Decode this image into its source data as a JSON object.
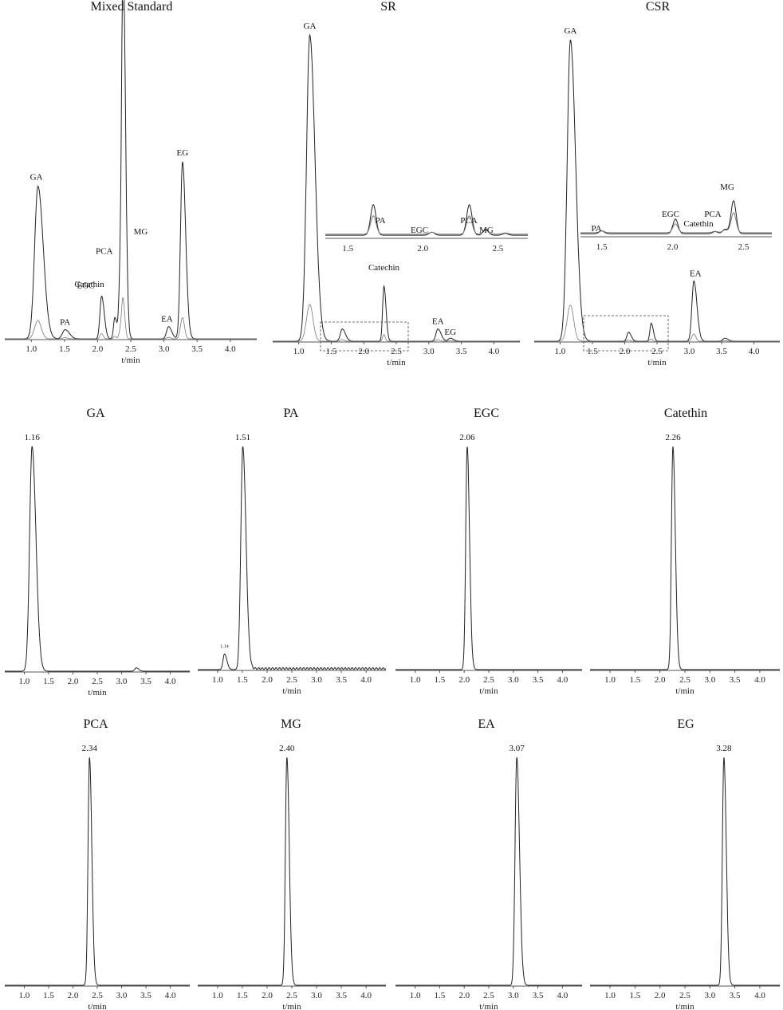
{
  "colors": {
    "trace": "#222222",
    "trace_light": "#7a7a7a",
    "axis": "#555555"
  },
  "chart_data": [
    {
      "type": "line",
      "title": "Mixed Standard",
      "xlabel": "t/min",
      "xticks": [
        "1.0",
        "1.5",
        "2.0",
        "2.5",
        "3.0",
        "3.5",
        "4.0"
      ],
      "xlim": [
        0.6,
        4.4
      ],
      "ylim": [
        0,
        100
      ],
      "peaks": [
        {
          "t": 1.1,
          "h": 50,
          "w": 0.05,
          "label": "GA"
        },
        {
          "t": 1.51,
          "h": 3,
          "w": 0.04,
          "label": "PA"
        },
        {
          "t": 2.06,
          "h": 14,
          "w": 0.025,
          "label": "EGC"
        },
        {
          "t": 2.26,
          "h": 7,
          "w": 0.02,
          "label": "Catethin"
        },
        {
          "t": 2.34,
          "h": 20,
          "w": 0.02,
          "label": "PCA"
        },
        {
          "t": 2.38,
          "h": 100,
          "w": 0.02,
          "label": ""
        },
        {
          "t": 2.41,
          "h": 30,
          "w": 0.02,
          "label": "MG"
        },
        {
          "t": 3.07,
          "h": 4,
          "w": 0.03,
          "label": "EA"
        },
        {
          "t": 3.28,
          "h": 58,
          "w": 0.03,
          "label": "EG"
        }
      ]
    },
    {
      "type": "line",
      "title": "SR",
      "xlabel": "t/min",
      "xticks": [
        "1.0",
        "1.5",
        "2.0",
        "2.5",
        "3.0",
        "3.5",
        "4.0"
      ],
      "xlim": [
        0.6,
        4.4
      ],
      "ylim": [
        0,
        100
      ],
      "peaks": [
        {
          "t": 1.17,
          "h": 100,
          "w": 0.05,
          "label": "GA"
        },
        {
          "t": 1.67,
          "h": 4,
          "w": 0.03,
          "label": ""
        },
        {
          "t": 2.31,
          "h": 18,
          "w": 0.02,
          "label": "Catechin"
        },
        {
          "t": 3.14,
          "h": 4,
          "w": 0.03,
          "label": "EA"
        },
        {
          "t": 3.33,
          "h": 1,
          "w": 0.03,
          "label": "EG"
        }
      ],
      "inset": {
        "xticks": [
          "1.5",
          "2.0",
          "2.5"
        ],
        "labels": [
          "PA",
          "EGC",
          "PCA",
          "MG"
        ]
      }
    },
    {
      "type": "line",
      "title": "CSR",
      "xlabel": "t/min",
      "xticks": [
        "1.0",
        "1.5",
        "2.0",
        "2.5",
        "3.0",
        "3.5",
        "4.0"
      ],
      "xlim": [
        0.6,
        4.4
      ],
      "ylim": [
        0,
        100
      ],
      "peaks": [
        {
          "t": 1.16,
          "h": 100,
          "w": 0.05,
          "label": "GA"
        },
        {
          "t": 2.06,
          "h": 3,
          "w": 0.025,
          "label": ""
        },
        {
          "t": 2.41,
          "h": 6,
          "w": 0.02,
          "label": ""
        },
        {
          "t": 3.07,
          "h": 20,
          "w": 0.03,
          "label": "EA"
        },
        {
          "t": 3.55,
          "h": 1,
          "w": 0.03,
          "label": ""
        }
      ],
      "inset": {
        "xticks": [
          "1.5",
          "2.0",
          "2.5"
        ],
        "labels": [
          "PA",
          "EGC",
          "PCA",
          "Catethin",
          "MG"
        ]
      }
    },
    {
      "type": "line",
      "title": "GA",
      "xlabel": "t/min",
      "xticks": [
        "1.0",
        "1.5",
        "2.0",
        "2.5",
        "3.0",
        "3.5",
        "4.0"
      ],
      "xlim": [
        0.6,
        4.4
      ],
      "ylim": [
        0,
        100
      ],
      "peaks": [
        {
          "t": 1.16,
          "h": 100,
          "w": 0.05,
          "label": "1.16"
        },
        {
          "t": 3.3,
          "h": 1.5,
          "w": 0.03,
          "label": ""
        }
      ]
    },
    {
      "type": "line",
      "title": "PA",
      "xlabel": "t/min",
      "xticks": [
        "1.0",
        "1.5",
        "2.0",
        "2.5",
        "3.0",
        "3.5",
        "4.0"
      ],
      "xlim": [
        0.6,
        4.4
      ],
      "ylim": [
        0,
        100
      ],
      "peaks": [
        {
          "t": 1.14,
          "h": 7,
          "w": 0.03,
          "label": "1.14"
        },
        {
          "t": 1.51,
          "h": 100,
          "w": 0.04,
          "label": "1.51"
        }
      ]
    },
    {
      "type": "line",
      "title": "EGC",
      "xlabel": "t/min",
      "xticks": [
        "1.0",
        "1.5",
        "2.0",
        "2.5",
        "3.0",
        "3.5",
        "4.0"
      ],
      "xlim": [
        0.6,
        4.4
      ],
      "ylim": [
        0,
        100
      ],
      "peaks": [
        {
          "t": 2.06,
          "h": 100,
          "w": 0.03,
          "label": "2.06"
        }
      ]
    },
    {
      "type": "line",
      "title": "Catethin",
      "xlabel": "t/min",
      "xticks": [
        "1.0",
        "1.5",
        "2.0",
        "2.5",
        "3.0",
        "3.5",
        "4.0"
      ],
      "xlim": [
        0.6,
        4.4
      ],
      "ylim": [
        0,
        100
      ],
      "peaks": [
        {
          "t": 2.26,
          "h": 100,
          "w": 0.03,
          "label": "2.26"
        }
      ]
    },
    {
      "type": "line",
      "title": "PCA",
      "xlabel": "t/min",
      "xticks": [
        "1.0",
        "1.5",
        "2.0",
        "2.5",
        "3.0",
        "3.5",
        "4.0"
      ],
      "xlim": [
        0.6,
        4.4
      ],
      "ylim": [
        0,
        100
      ],
      "peaks": [
        {
          "t": 2.34,
          "h": 100,
          "w": 0.03,
          "label": "2.34"
        }
      ]
    },
    {
      "type": "line",
      "title": "MG",
      "xlabel": "t/min",
      "xticks": [
        "1.0",
        "1.5",
        "2.0",
        "2.5",
        "3.0",
        "3.5",
        "4.0"
      ],
      "xlim": [
        0.6,
        4.4
      ],
      "ylim": [
        0,
        100
      ],
      "peaks": [
        {
          "t": 2.4,
          "h": 100,
          "w": 0.03,
          "label": "2.40"
        }
      ]
    },
    {
      "type": "line",
      "title": "EA",
      "xlabel": "t/min",
      "xticks": [
        "1.0",
        "1.5",
        "2.0",
        "2.5",
        "3.0",
        "3.5",
        "4.0"
      ],
      "xlim": [
        0.6,
        4.4
      ],
      "ylim": [
        0,
        100
      ],
      "peaks": [
        {
          "t": 3.07,
          "h": 100,
          "w": 0.035,
          "label": "3.07"
        }
      ]
    },
    {
      "type": "line",
      "title": "EG",
      "xlabel": "t/min",
      "xticks": [
        "1.0",
        "1.5",
        "2.0",
        "2.5",
        "3.0",
        "3.5",
        "4.0"
      ],
      "xlim": [
        0.6,
        4.4
      ],
      "ylim": [
        0,
        100
      ],
      "peaks": [
        {
          "t": 3.28,
          "h": 100,
          "w": 0.03,
          "label": "3.28"
        }
      ]
    }
  ]
}
